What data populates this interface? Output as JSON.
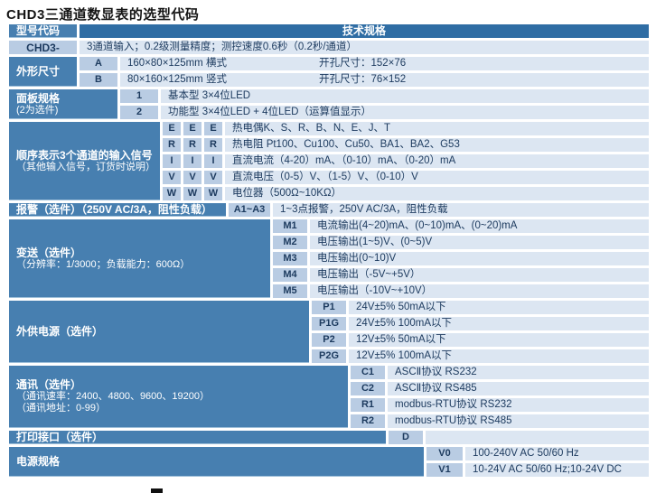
{
  "title": "CHD3三通道数显表的选型代码",
  "colors": {
    "header_bar": "#2F6DA4",
    "label_bg": "#477FB0",
    "code_bg": "#B9CCE3",
    "desc_bg": "#DCE6F2",
    "text_dark": "#1C3A5E"
  },
  "table": {
    "model_code": {
      "label": "型号代码",
      "header": "技术规格"
    },
    "model": {
      "label": "CHD3-",
      "desc": "3通道输入；0.2级测量精度；测控速度0.6秒（0.2秒/通道）"
    },
    "shape": {
      "label": "外形尺寸",
      "rows": [
        {
          "code": "A",
          "desc": "160×80×125mm 横式",
          "hole": "开孔尺寸：152×76"
        },
        {
          "code": "B",
          "desc": "80×160×125mm 竖式",
          "hole": "开孔尺寸：76×152"
        }
      ]
    },
    "panel": {
      "label": "面板规格",
      "note": "(2为选件)",
      "rows": [
        {
          "code": "1",
          "desc": "基本型 3×4位LED"
        },
        {
          "code": "2",
          "desc": "功能型 3×4位LED + 4位LED（运算值显示）"
        }
      ]
    },
    "input": {
      "label": "顺序表示3个通道的输入信号",
      "note": "（其他输入信号，订货时说明）",
      "rows": [
        {
          "codes": [
            "E",
            "E",
            "E"
          ],
          "desc": "热电偶K、S、R、B、N、E、J、T"
        },
        {
          "codes": [
            "R",
            "R",
            "R"
          ],
          "desc": "热电阻 Pt100、Cu100、Cu50、BA1、BA2、G53"
        },
        {
          "codes": [
            "I",
            "I",
            "I"
          ],
          "desc": "直流电流（4-20）mA、（0-10）mA、（0-20）mA"
        },
        {
          "codes": [
            "V",
            "V",
            "V"
          ],
          "desc": "直流电压（0-5）V、（1-5）V、（0-10）V"
        },
        {
          "codes": [
            "W",
            "W",
            "W"
          ],
          "desc": "电位器（500Ω~10KΩ）"
        }
      ]
    },
    "alarm": {
      "label": "报警（选件）（250V AC/3A，阻性负载）",
      "rows": [
        {
          "code": "A1~A3",
          "desc": "1~3点报警，250V AC/3A，阻性负载"
        }
      ]
    },
    "transmit": {
      "label": "变送（选件）",
      "note": "（分辨率：1/3000；负载能力：600Ω）",
      "rows": [
        {
          "code": "M1",
          "desc": "电流输出(4~20)mA、(0~10)mA、(0~20)mA"
        },
        {
          "code": "M2",
          "desc": "电压输出(1~5)V、(0~5)V"
        },
        {
          "code": "M3",
          "desc": "电压输出(0~10)V"
        },
        {
          "code": "M4",
          "desc": "电压输出（-5V~+5V）"
        },
        {
          "code": "M5",
          "desc": "电压输出（-10V~+10V）"
        }
      ]
    },
    "ext_power": {
      "label": "外供电源（选件）",
      "rows": [
        {
          "code": "P1",
          "desc": "24V±5% 50mA以下"
        },
        {
          "code": "P1G",
          "desc": "24V±5% 100mA以下"
        },
        {
          "code": "P2",
          "desc": "12V±5% 50mA以下"
        },
        {
          "code": "P2G",
          "desc": "12V±5% 100mA以下"
        }
      ]
    },
    "comm": {
      "label": "通讯（选件）",
      "note": "（通讯速率：2400、4800、9600、19200）",
      "note2": "（通讯地址：0-99）",
      "rows": [
        {
          "code": "C1",
          "desc": "ASCⅡ协议 RS232"
        },
        {
          "code": "C2",
          "desc": "ASCⅡ协议 RS485"
        },
        {
          "code": "R1",
          "desc": "modbus-RTU协议 RS232"
        },
        {
          "code": "R2",
          "desc": "modbus-RTU协议 RS485"
        }
      ]
    },
    "print": {
      "label": "打印接口（选件）",
      "rows": [
        {
          "code": "D",
          "desc": ""
        }
      ]
    },
    "power": {
      "label": "电源规格",
      "rows": [
        {
          "code": "V0",
          "desc": "100-240V AC 50/60 Hz"
        },
        {
          "code": "V1",
          "desc": "10-24V AC 50/60 Hz;10-24V DC"
        }
      ]
    }
  }
}
